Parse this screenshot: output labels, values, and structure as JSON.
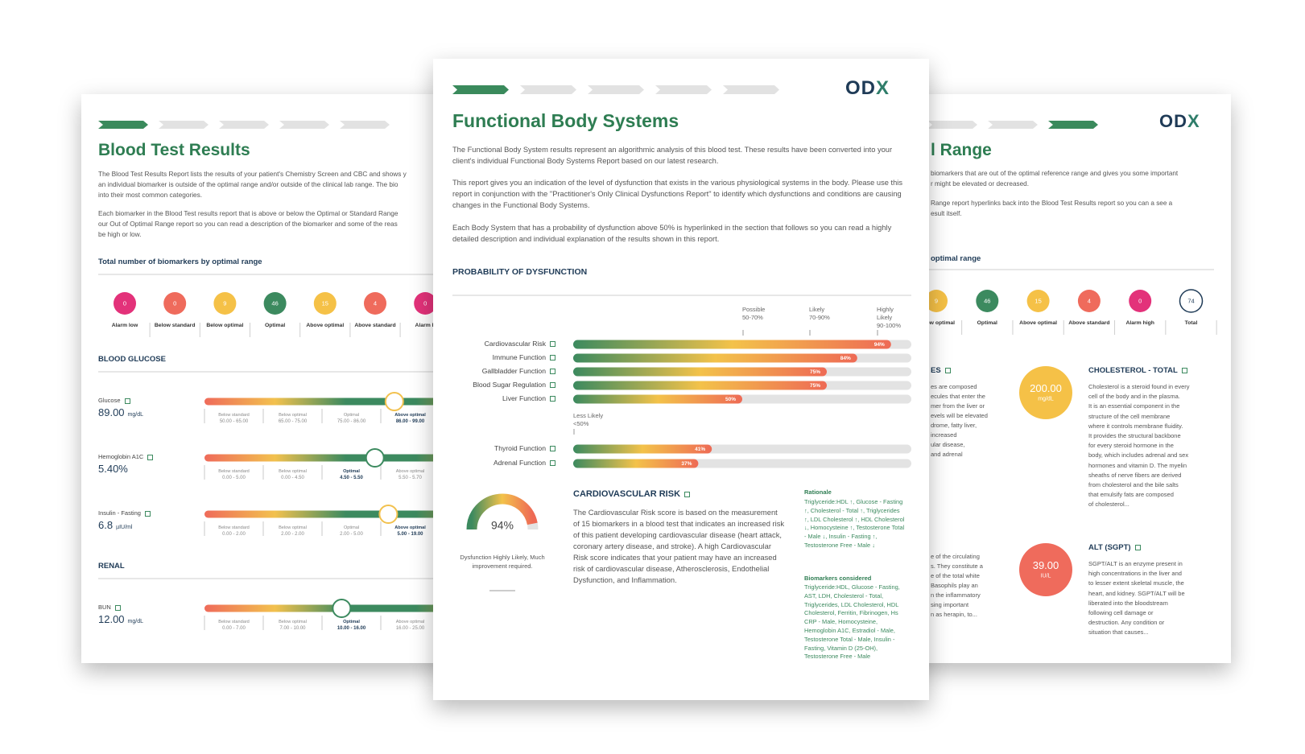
{
  "left_page": {
    "title": "Blood Test Results",
    "intro": [
      [
        "The Blood Test Results Report lists the results of your patient's Chemistry Screen and CBC and shows y",
        "an individual biomarker is outside of the optimal range and/or outside of the clinical lab range. The bio",
        "into their most common categories."
      ],
      [
        "Each biomarker in the Blood Test results report that is above or below the Optimal or Standard Range",
        "our Out of Optimal Range report so you can read a description of the biomarker and some of the reas",
        "be high or low."
      ]
    ],
    "summary_title": "Total number of biomarkers by optimal range",
    "summary": [
      {
        "count": 0,
        "label": "Alarm low",
        "color": "#e3327a"
      },
      {
        "count": 0,
        "label": "Below standard",
        "color": "#ef6b5c"
      },
      {
        "count": 9,
        "label": "Below optimal",
        "color": "#f5c147"
      },
      {
        "count": 46,
        "label": "Optimal",
        "color": "#3c8a5f"
      },
      {
        "count": 15,
        "label": "Above optimal",
        "color": "#f5c147"
      },
      {
        "count": 4,
        "label": "Above standard",
        "color": "#ef6b5c"
      },
      {
        "count": 0,
        "label": "Alarm h",
        "color": "#e3327a"
      }
    ],
    "groups": [
      {
        "title": "BLOOD GLUCOSE",
        "items": [
          {
            "name": "Glucose",
            "value": 89,
            "value_label": "89.00",
            "unit": "mg/dL",
            "active": 3,
            "ranges": [
              {
                "label": "Below standard",
                "range": "50.00 - 65.00"
              },
              {
                "label": "Below optimal",
                "range": "65.00 - 75.00"
              },
              {
                "label": "Optimal",
                "range": "75.00 - 86.00"
              },
              {
                "label": "Above optimal",
                "range": "86.00 - 99.00"
              }
            ]
          },
          {
            "name": "Hemoglobin A1C",
            "value": 5.4,
            "value_label": "5.40%",
            "unit": "",
            "active": 2,
            "ranges": [
              {
                "label": "Below standard",
                "range": "0.00 - 5.00"
              },
              {
                "label": "Below optimal",
                "range": "0.00 - 4.50"
              },
              {
                "label": "Optimal",
                "range": "4.50 - 5.50"
              },
              {
                "label": "Above optimal",
                "range": "5.50 - 5.70"
              }
            ]
          },
          {
            "name": "Insulin - Fasting",
            "value": 6.8,
            "value_label": "6.8",
            "unit": "µIU/ml",
            "active": 3,
            "ranges": [
              {
                "label": "Below standard",
                "range": "0.00 - 2.00"
              },
              {
                "label": "Below optimal",
                "range": "2.00 - 2.00"
              },
              {
                "label": "Optimal",
                "range": "2.00 - 5.00"
              },
              {
                "label": "Above optimal",
                "range": "5.00 - 19.00"
              }
            ]
          }
        ]
      },
      {
        "title": "RENAL",
        "items": [
          {
            "name": "BUN",
            "value": 12,
            "value_label": "12.00",
            "unit": "mg/dL",
            "active": 2,
            "ranges": [
              {
                "label": "Below standard",
                "range": "0.00 - 7.00"
              },
              {
                "label": "Below optimal",
                "range": "7.00 - 10.00"
              },
              {
                "label": "Optimal",
                "range": "10.00 - 16.00"
              },
              {
                "label": "Above optimal",
                "range": "16.00 - 25.00"
              }
            ]
          }
        ]
      }
    ]
  },
  "center_page": {
    "logo": [
      "OD",
      "X"
    ],
    "title": "Functional Body Systems",
    "paragraphs": [
      "The Functional Body System results represent an algorithmic analysis of this blood test. These results have been converted into your client's individual Functional Body Systems Report based on our latest research.",
      "This report gives you an indication of the level of dysfunction that exists in the various physiological systems in the body. Please use this report in conjunction with the \"Practitioner's Only Clinical Dysfunctions Report\" to identify which dysfunctions and conditions are causing changes in the Functional Body Systems.",
      "Each Body System that has a probability of dysfunction above 50% is hyperlinked in the section that follows so you can read a highly detailed description and individual explanation of the results shown in this report."
    ],
    "section_title": "PROBABILITY OF DYSFUNCTION",
    "scale_labels": [
      [
        "Possible",
        "50-70%"
      ],
      [
        "Likely",
        "70-90%"
      ],
      [
        "Highly",
        "Likely",
        "90-100%"
      ]
    ],
    "lower_label": [
      "Less Likely",
      "<50%"
    ],
    "chart_data": {
      "type": "bar",
      "categories": [
        "Cardiovascular Risk",
        "Immune Function",
        "Gallbladder Function",
        "Blood Sugar Regulation",
        "Liver Function",
        "Thyroid Function",
        "Adrenal Function"
      ],
      "values": [
        94,
        84,
        75,
        75,
        50,
        41,
        37
      ],
      "value_labels": [
        "94%",
        "84%",
        "75%",
        "75%",
        "50%",
        "41%",
        "37%"
      ],
      "xlim": [
        0,
        100
      ],
      "colors": [
        "#3c8a5f",
        "#f3c24a",
        "#ee6a55"
      ]
    },
    "gauge": {
      "value": 94,
      "value_label": "94%",
      "caption": "Dysfunction Highly Likely, Much improvement required."
    },
    "detail": {
      "title": "CARDIOVASCULAR RISK",
      "text": "The Cardiovascular Risk score is based on the measurement of 15 biomarkers in a blood test that indicates an increased risk of this patient developing cardiovascular disease (heart attack, coronary artery disease, and stroke). A high Cardiovascular Risk score indicates that your patient may have an increased risk of cardiovascular disease, Atherosclerosis, Endothelial Dysfunction, and Inflammation.",
      "rationale_title": "Rationale",
      "rationale": "Triglyceride:HDL ↑, Glucose - Fasting ↑, Cholesterol - Total ↑, Triglycerides ↑, LDL Cholesterol ↑, HDL Cholesterol ↓, Homocysteine ↑, Testosterone Total - Male ↓, Insulin - Fasting ↑, Testosterone Free - Male ↓",
      "biomarkers_title": "Biomarkers considered",
      "biomarkers": "Triglyceride:HDL, Glucose - Fasting, AST, LDH, Cholesterol - Total, Triglycerides, LDL Cholesterol, HDL Cholesterol, Ferritin, Fibrinogen, Hs CRP - Male, Homocysteine, Hemoglobin A1C, Estradiol - Male, Testosterone Total - Male, Insulin - Fasting, Vitamin D (25-OH), Testosterone Free - Male"
    }
  },
  "right_page": {
    "logo": [
      "OD",
      "X"
    ],
    "title": "l Range",
    "intro": [
      [
        "biomarkers that are out of the optimal reference range and gives you some important",
        "r might be elevated or decreased."
      ],
      [
        "Range report hyperlinks back into the Blood Test Results report so you can a see a",
        "esult itself."
      ]
    ],
    "summary_title": "optimal range",
    "summary": [
      {
        "count": 9,
        "label": "Below optimal",
        "color": "#f5c147"
      },
      {
        "count": 46,
        "label": "Optimal",
        "color": "#3c8a5f"
      },
      {
        "count": 15,
        "label": "Above optimal",
        "color": "#f5c147"
      },
      {
        "count": 4,
        "label": "Above standard",
        "color": "#ef6b5c"
      },
      {
        "count": 0,
        "label": "Alarm high",
        "color": "#e3327a"
      },
      {
        "count": 74,
        "label": "Total",
        "color": "#1f3b57",
        "style": "outline"
      }
    ],
    "partial_cards": [
      {
        "title": "ES",
        "text": [
          "es are composed",
          "ecules that enter the",
          "mer from the liver or",
          "evels will be elevated",
          "drome, fatty liver,",
          "increased",
          "ular disease,",
          "and adrenal"
        ]
      },
      {
        "text": [
          "e of the circulating",
          "s. They constitute a",
          "e of the total white",
          "Basophils play an",
          "n the inflammatory",
          "sing important",
          "n as herapin, to..."
        ]
      }
    ],
    "cards": [
      {
        "title": "CHOLESTEROL - TOTAL",
        "value": "200.00",
        "unit": "mg/dL",
        "color": "#f5c147",
        "text": [
          "Cholesterol is a steroid found in every",
          "cell of the body and in the plasma.",
          "It is an essential component in the",
          "structure of the cell membrane",
          "where it controls membrane fluidity.",
          "It provides the structural backbone",
          "for every steroid hormone in the",
          "body, which includes adrenal and sex",
          "hormones and vitamin D. The myelin",
          "sheaths of nerve fibers are derived",
          "from cholesterol and the bile salts",
          "that emulsify fats are composed",
          "of cholesterol..."
        ]
      },
      {
        "title": "ALT (SGPT)",
        "value": "39.00",
        "unit": "IU/L",
        "color": "#ef6b5c",
        "text": [
          "SGPT/ALT is an enzyme present in",
          "high concentrations in the liver and",
          "to lesser extent skeletal muscle, the",
          "heart, and kidney. SGPT/ALT will be",
          "liberated into the bloodstream",
          "following cell damage or",
          "destruction. Any condition or",
          "situation that causes..."
        ]
      }
    ]
  }
}
